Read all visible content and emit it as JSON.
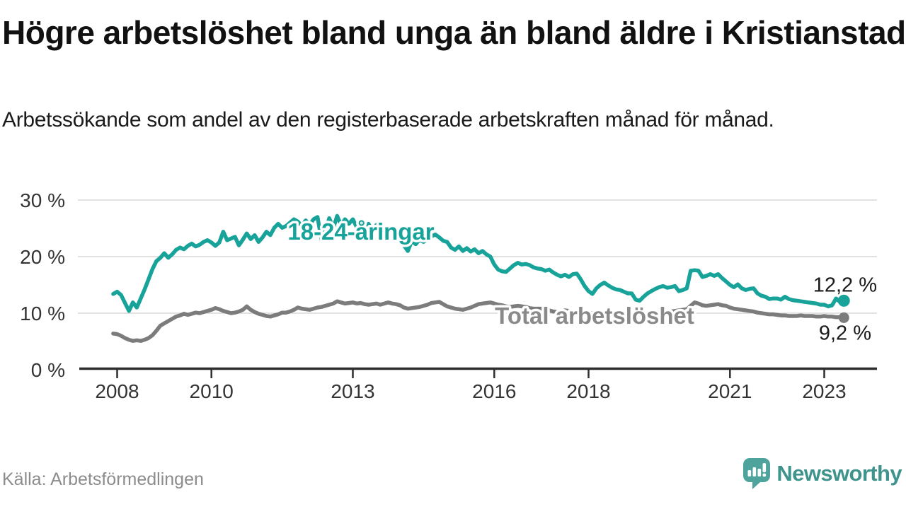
{
  "header": {
    "title": "Högre arbetslöshet bland unga än bland äldre i Kristianstad",
    "subtitle": "Arbetssökande som andel av den registerbaserade arbetskraften månad för månad."
  },
  "footer": {
    "source": "Källa: Arbetsförmedlingen",
    "brand": "Newsworthy"
  },
  "icons": {
    "logo": "newsworthy-speech-bubble-bar-chart-icon"
  },
  "colors": {
    "accent_teal": "#17a29a",
    "line_gray": "#7c7c7c",
    "label_gray": "#8a8a8a",
    "gridline": "#cfcfcf",
    "axis": "#2e2e2e",
    "tick_text": "#333333",
    "end_label_text": "#1a1a1a",
    "brand_teal": "#4ea49c",
    "brand_text": "#3e948d"
  },
  "chart_data": {
    "type": "line",
    "unit": "%",
    "frequency": "monthly",
    "start": "2007-12",
    "end": "2023-06",
    "ylim": [
      0,
      30
    ],
    "grid": true,
    "legend_position": "inline-labels",
    "yticks": [
      {
        "value": 0,
        "label": "0 %"
      },
      {
        "value": 10,
        "label": "10 %"
      },
      {
        "value": 20,
        "label": "20 %"
      },
      {
        "value": 30,
        "label": "30 %"
      }
    ],
    "xticks": [
      {
        "year": 2008,
        "label": "2008"
      },
      {
        "year": 2010,
        "label": "2010"
      },
      {
        "year": 2013,
        "label": "2013"
      },
      {
        "year": 2016,
        "label": "2016"
      },
      {
        "year": 2018,
        "label": "2018"
      },
      {
        "year": 2021,
        "label": "2021"
      },
      {
        "year": 2023,
        "label": "2023"
      }
    ],
    "series": [
      {
        "id": "total",
        "name": "Total arbetslöshet",
        "color": "#7c7c7c",
        "end_label": "9,2 %",
        "end_value": 9.2,
        "values": [
          6.4,
          6.3,
          6.0,
          5.6,
          5.3,
          5.1,
          5.2,
          5.1,
          5.3,
          5.6,
          6.1,
          6.9,
          7.8,
          8.2,
          8.6,
          9.0,
          9.4,
          9.6,
          9.9,
          9.7,
          9.9,
          10.1,
          10.0,
          10.2,
          10.4,
          10.6,
          10.9,
          10.7,
          10.4,
          10.2,
          10.0,
          10.1,
          10.3,
          10.6,
          11.2,
          10.6,
          10.2,
          9.9,
          9.7,
          9.5,
          9.4,
          9.6,
          9.8,
          10.1,
          10.1,
          10.3,
          10.6,
          11.0,
          10.8,
          10.7,
          10.6,
          10.8,
          11.0,
          11.1,
          11.3,
          11.5,
          11.7,
          12.1,
          11.9,
          11.7,
          11.8,
          11.9,
          11.7,
          11.8,
          11.6,
          11.5,
          11.6,
          11.7,
          11.5,
          11.7,
          11.9,
          11.7,
          11.6,
          11.4,
          11.0,
          10.8,
          10.9,
          11.0,
          11.1,
          11.3,
          11.5,
          11.8,
          11.9,
          12.0,
          11.6,
          11.2,
          11.0,
          10.8,
          10.7,
          10.6,
          10.8,
          11.0,
          11.3,
          11.6,
          11.7,
          11.8,
          11.9,
          11.7,
          11.5,
          11.4,
          11.2,
          11.1,
          11.2,
          11.3,
          11.2,
          11.1,
          10.9,
          10.8,
          10.8,
          10.8,
          10.6,
          10.5,
          10.3,
          10.2,
          10.3,
          10.5,
          10.4,
          10.2,
          10.1,
          10.0,
          10.0,
          10.1,
          10.0,
          9.9,
          9.8,
          9.7,
          9.8,
          9.9,
          9.9,
          9.8,
          9.7,
          9.7,
          9.8,
          9.9,
          9.8,
          9.8,
          9.9,
          10.0,
          10.1,
          10.2,
          10.3,
          10.2,
          10.3,
          10.4,
          10.5,
          10.6,
          10.7,
          11.3,
          11.9,
          11.7,
          11.4,
          11.3,
          11.4,
          11.5,
          11.6,
          11.4,
          11.3,
          11.0,
          10.8,
          10.7,
          10.6,
          10.5,
          10.4,
          10.3,
          10.1,
          10.0,
          9.9,
          9.8,
          9.8,
          9.7,
          9.6,
          9.6,
          9.5,
          9.5,
          9.5,
          9.6,
          9.5,
          9.5,
          9.5,
          9.4,
          9.4,
          9.5,
          9.4,
          9.4,
          9.3,
          9.3,
          9.2
        ]
      },
      {
        "id": "young",
        "name": "18-24-åringar",
        "color": "#17a29a",
        "end_label": "12,2 %",
        "end_value": 12.2,
        "values": [
          13.4,
          13.8,
          13.2,
          11.8,
          10.4,
          11.9,
          11.0,
          12.6,
          14.2,
          16.0,
          17.8,
          19.2,
          19.8,
          20.6,
          19.8,
          20.4,
          21.2,
          21.6,
          21.3,
          21.9,
          22.3,
          21.8,
          22.1,
          22.6,
          22.9,
          22.5,
          21.9,
          22.5,
          24.4,
          22.9,
          23.2,
          23.5,
          22.0,
          23.0,
          24.1,
          23.1,
          23.8,
          22.6,
          23.4,
          24.4,
          23.8,
          25.1,
          25.8,
          25.1,
          25.4,
          26.0,
          26.6,
          26.2,
          25.4,
          26.4,
          25.6,
          26.6,
          27.0,
          23.0,
          24.5,
          26.8,
          25.0,
          27.2,
          25.6,
          26.6,
          25.8,
          26.6,
          25.2,
          26.2,
          24.8,
          25.8,
          24.4,
          25.6,
          24.6,
          25.2,
          24.2,
          24.8,
          23.8,
          23.2,
          22.0,
          21.0,
          22.8,
          22.2,
          23.0,
          22.6,
          23.2,
          23.6,
          23.9,
          23.4,
          22.8,
          22.6,
          21.6,
          21.2,
          21.8,
          21.0,
          21.5,
          20.9,
          21.3,
          20.6,
          21.0,
          20.4,
          20.0,
          18.6,
          17.7,
          17.4,
          17.3,
          17.9,
          18.5,
          18.9,
          18.6,
          18.7,
          18.5,
          18.1,
          17.9,
          17.8,
          17.5,
          17.7,
          17.2,
          16.8,
          16.5,
          16.8,
          16.4,
          16.9,
          17.0,
          16.0,
          14.8,
          13.9,
          13.4,
          14.4,
          15.0,
          15.4,
          14.9,
          14.5,
          14.2,
          14.1,
          13.8,
          13.5,
          13.5,
          12.4,
          12.2,
          12.9,
          13.5,
          13.9,
          14.3,
          14.6,
          14.8,
          14.5,
          14.6,
          14.8,
          13.9,
          14.1,
          14.4,
          17.5,
          17.6,
          17.5,
          16.4,
          16.6,
          16.9,
          16.6,
          16.9,
          16.2,
          15.6,
          15.0,
          14.6,
          15.1,
          14.4,
          14.1,
          14.3,
          14.4,
          13.5,
          13.1,
          12.9,
          12.5,
          12.6,
          12.6,
          12.4,
          12.9,
          12.5,
          12.3,
          12.2,
          12.1,
          12.0,
          11.9,
          11.8,
          11.7,
          11.5,
          11.5,
          11.2,
          11.4,
          12.6,
          12.0,
          12.2
        ]
      }
    ]
  }
}
